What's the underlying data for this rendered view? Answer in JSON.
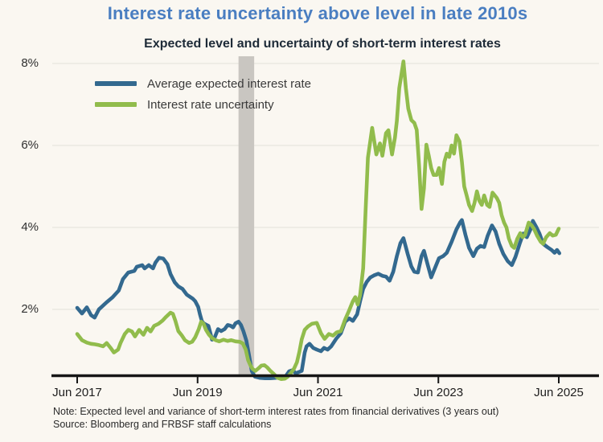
{
  "chart_data": {
    "type": "line",
    "title": "Interest rate uncertainty above level in late 2010s",
    "subtitle": "Expected level and uncertainty of short-term interest rates",
    "note": "Note: Expected level and variance of short-term interest rates from financial derivatives (3 years out)",
    "source": "Source: Bloomberg and FRBSF staff calculations",
    "x_axis": {
      "epoch": "years since Jun 2017",
      "tick_years": [
        0,
        2,
        4,
        6,
        8
      ],
      "tick_labels": [
        "Jun 2017",
        "Jun 2019",
        "Jun 2021",
        "Jun 2023",
        "Jun 2025"
      ],
      "range": [
        0,
        8.05
      ]
    },
    "y_axis": {
      "unit": "%",
      "tick_values": [
        2,
        4,
        6,
        8
      ],
      "tick_labels": [
        "2%",
        "4%",
        "6%",
        "8%"
      ],
      "range": [
        0.3,
        8.2
      ],
      "grid": true
    },
    "shaded_region": {
      "name": "recession-shading",
      "start_year": 2.68,
      "end_year": 2.94,
      "color": "#C9C6C1"
    },
    "colors": {
      "accent_title": "#4A7EC1",
      "axis": "#161616",
      "grid": "#E8E5DE"
    },
    "series": [
      {
        "name": "Average expected interest rate",
        "color": "#33698F",
        "points": [
          [
            0.0,
            2.04
          ],
          [
            0.08,
            1.9
          ],
          [
            0.16,
            2.05
          ],
          [
            0.23,
            1.86
          ],
          [
            0.29,
            1.8
          ],
          [
            0.36,
            2.0
          ],
          [
            0.48,
            2.16
          ],
          [
            0.59,
            2.3
          ],
          [
            0.69,
            2.46
          ],
          [
            0.76,
            2.74
          ],
          [
            0.85,
            2.9
          ],
          [
            0.95,
            2.94
          ],
          [
            0.99,
            3.04
          ],
          [
            1.08,
            3.08
          ],
          [
            1.12,
            3.0
          ],
          [
            1.19,
            3.08
          ],
          [
            1.26,
            3.0
          ],
          [
            1.3,
            3.14
          ],
          [
            1.36,
            3.26
          ],
          [
            1.43,
            3.24
          ],
          [
            1.5,
            3.1
          ],
          [
            1.55,
            2.86
          ],
          [
            1.62,
            2.66
          ],
          [
            1.68,
            2.56
          ],
          [
            1.75,
            2.5
          ],
          [
            1.82,
            2.36
          ],
          [
            1.88,
            2.3
          ],
          [
            1.92,
            2.26
          ],
          [
            1.96,
            2.2
          ],
          [
            2.01,
            2.06
          ],
          [
            2.04,
            1.88
          ],
          [
            2.07,
            1.72
          ],
          [
            2.1,
            1.66
          ],
          [
            2.14,
            1.63
          ],
          [
            2.18,
            1.6
          ],
          [
            2.22,
            1.38
          ],
          [
            2.24,
            1.26
          ],
          [
            2.28,
            1.3
          ],
          [
            2.34,
            1.52
          ],
          [
            2.39,
            1.47
          ],
          [
            2.45,
            1.52
          ],
          [
            2.5,
            1.62
          ],
          [
            2.55,
            1.6
          ],
          [
            2.59,
            1.56
          ],
          [
            2.63,
            1.66
          ],
          [
            2.68,
            1.7
          ],
          [
            2.72,
            1.62
          ],
          [
            2.76,
            1.47
          ],
          [
            2.81,
            1.24
          ],
          [
            2.85,
            0.92
          ],
          [
            2.9,
            0.5
          ],
          [
            2.95,
            0.36
          ],
          [
            3.03,
            0.33
          ],
          [
            3.12,
            0.32
          ],
          [
            3.21,
            0.32
          ],
          [
            3.3,
            0.33
          ],
          [
            3.38,
            0.35
          ],
          [
            3.46,
            0.36
          ],
          [
            3.52,
            0.49
          ],
          [
            3.58,
            0.52
          ],
          [
            3.63,
            0.44
          ],
          [
            3.68,
            0.47
          ],
          [
            3.73,
            0.5
          ],
          [
            3.78,
            0.95
          ],
          [
            3.81,
            1.1
          ],
          [
            3.86,
            1.16
          ],
          [
            3.92,
            1.06
          ],
          [
            3.98,
            1.02
          ],
          [
            4.05,
            0.98
          ],
          [
            4.1,
            1.06
          ],
          [
            4.16,
            1.02
          ],
          [
            4.22,
            1.1
          ],
          [
            4.3,
            1.28
          ],
          [
            4.38,
            1.42
          ],
          [
            4.45,
            1.7
          ],
          [
            4.52,
            1.78
          ],
          [
            4.58,
            1.72
          ],
          [
            4.65,
            1.88
          ],
          [
            4.7,
            2.2
          ],
          [
            4.75,
            2.5
          ],
          [
            4.81,
            2.67
          ],
          [
            4.87,
            2.78
          ],
          [
            4.93,
            2.83
          ],
          [
            5.0,
            2.87
          ],
          [
            5.07,
            2.82
          ],
          [
            5.13,
            2.8
          ],
          [
            5.19,
            2.7
          ],
          [
            5.25,
            2.92
          ],
          [
            5.31,
            3.3
          ],
          [
            5.37,
            3.62
          ],
          [
            5.42,
            3.74
          ],
          [
            5.49,
            3.35
          ],
          [
            5.55,
            3.05
          ],
          [
            5.6,
            2.92
          ],
          [
            5.66,
            2.9
          ],
          [
            5.72,
            3.3
          ],
          [
            5.76,
            3.43
          ],
          [
            5.82,
            3.1
          ],
          [
            5.88,
            2.78
          ],
          [
            5.94,
            3.0
          ],
          [
            6.01,
            3.25
          ],
          [
            6.08,
            3.3
          ],
          [
            6.14,
            3.38
          ],
          [
            6.22,
            3.65
          ],
          [
            6.3,
            3.95
          ],
          [
            6.36,
            4.12
          ],
          [
            6.39,
            4.18
          ],
          [
            6.45,
            3.82
          ],
          [
            6.51,
            3.5
          ],
          [
            6.58,
            3.3
          ],
          [
            6.64,
            3.48
          ],
          [
            6.7,
            3.55
          ],
          [
            6.76,
            3.52
          ],
          [
            6.82,
            3.8
          ],
          [
            6.89,
            4.05
          ],
          [
            6.95,
            3.9
          ],
          [
            7.01,
            3.6
          ],
          [
            7.08,
            3.35
          ],
          [
            7.15,
            3.18
          ],
          [
            7.22,
            3.08
          ],
          [
            7.28,
            3.28
          ],
          [
            7.35,
            3.6
          ],
          [
            7.41,
            3.85
          ],
          [
            7.47,
            3.76
          ],
          [
            7.53,
            3.95
          ],
          [
            7.57,
            4.16
          ],
          [
            7.63,
            4.0
          ],
          [
            7.68,
            3.85
          ],
          [
            7.74,
            3.6
          ],
          [
            7.81,
            3.52
          ],
          [
            7.88,
            3.45
          ],
          [
            7.93,
            3.38
          ],
          [
            7.97,
            3.45
          ],
          [
            8.01,
            3.37
          ]
        ]
      },
      {
        "name": "Interest rate uncertainty",
        "color": "#91BC4C",
        "points": [
          [
            0.0,
            1.4
          ],
          [
            0.08,
            1.25
          ],
          [
            0.16,
            1.19
          ],
          [
            0.23,
            1.16
          ],
          [
            0.29,
            1.15
          ],
          [
            0.36,
            1.13
          ],
          [
            0.43,
            1.1
          ],
          [
            0.49,
            1.18
          ],
          [
            0.55,
            1.07
          ],
          [
            0.61,
            0.95
          ],
          [
            0.68,
            1.02
          ],
          [
            0.72,
            1.18
          ],
          [
            0.79,
            1.4
          ],
          [
            0.85,
            1.5
          ],
          [
            0.91,
            1.46
          ],
          [
            0.96,
            1.34
          ],
          [
            1.03,
            1.5
          ],
          [
            1.1,
            1.38
          ],
          [
            1.16,
            1.55
          ],
          [
            1.22,
            1.46
          ],
          [
            1.28,
            1.6
          ],
          [
            1.35,
            1.65
          ],
          [
            1.42,
            1.73
          ],
          [
            1.47,
            1.81
          ],
          [
            1.55,
            1.92
          ],
          [
            1.59,
            1.89
          ],
          [
            1.63,
            1.73
          ],
          [
            1.68,
            1.47
          ],
          [
            1.74,
            1.36
          ],
          [
            1.79,
            1.25
          ],
          [
            1.86,
            1.18
          ],
          [
            1.91,
            1.21
          ],
          [
            1.96,
            1.32
          ],
          [
            2.02,
            1.52
          ],
          [
            2.06,
            1.7
          ],
          [
            2.1,
            1.65
          ],
          [
            2.14,
            1.5
          ],
          [
            2.19,
            1.38
          ],
          [
            2.24,
            1.3
          ],
          [
            2.3,
            1.25
          ],
          [
            2.36,
            1.22
          ],
          [
            2.43,
            1.26
          ],
          [
            2.5,
            1.23
          ],
          [
            2.56,
            1.25
          ],
          [
            2.63,
            1.22
          ],
          [
            2.7,
            1.21
          ],
          [
            2.75,
            1.17
          ],
          [
            2.8,
            1.02
          ],
          [
            2.84,
            0.76
          ],
          [
            2.88,
            0.63
          ],
          [
            2.91,
            0.55
          ],
          [
            2.96,
            0.5
          ],
          [
            3.01,
            0.56
          ],
          [
            3.06,
            0.63
          ],
          [
            3.11,
            0.64
          ],
          [
            3.16,
            0.58
          ],
          [
            3.21,
            0.5
          ],
          [
            3.27,
            0.42
          ],
          [
            3.33,
            0.33
          ],
          [
            3.39,
            0.3
          ],
          [
            3.45,
            0.31
          ],
          [
            3.5,
            0.36
          ],
          [
            3.55,
            0.45
          ],
          [
            3.6,
            0.55
          ],
          [
            3.65,
            0.71
          ],
          [
            3.69,
            0.96
          ],
          [
            3.73,
            1.27
          ],
          [
            3.78,
            1.5
          ],
          [
            3.83,
            1.58
          ],
          [
            3.9,
            1.65
          ],
          [
            3.98,
            1.67
          ],
          [
            4.05,
            1.42
          ],
          [
            4.11,
            1.28
          ],
          [
            4.18,
            1.4
          ],
          [
            4.25,
            1.36
          ],
          [
            4.31,
            1.44
          ],
          [
            4.38,
            1.47
          ],
          [
            4.45,
            1.75
          ],
          [
            4.51,
            1.95
          ],
          [
            4.58,
            2.2
          ],
          [
            4.62,
            2.3
          ],
          [
            4.66,
            2.12
          ],
          [
            4.7,
            2.35
          ],
          [
            4.75,
            3.0
          ],
          [
            4.79,
            4.4
          ],
          [
            4.83,
            5.7
          ],
          [
            4.9,
            6.43
          ],
          [
            4.97,
            5.78
          ],
          [
            5.03,
            6.05
          ],
          [
            5.07,
            5.75
          ],
          [
            5.13,
            6.3
          ],
          [
            5.17,
            6.37
          ],
          [
            5.23,
            5.78
          ],
          [
            5.28,
            6.2
          ],
          [
            5.31,
            6.6
          ],
          [
            5.35,
            7.4
          ],
          [
            5.42,
            8.05
          ],
          [
            5.46,
            7.4
          ],
          [
            5.5,
            6.9
          ],
          [
            5.55,
            6.62
          ],
          [
            5.6,
            6.55
          ],
          [
            5.64,
            6.38
          ],
          [
            5.68,
            5.5
          ],
          [
            5.72,
            4.45
          ],
          [
            5.76,
            4.95
          ],
          [
            5.8,
            6.02
          ],
          [
            5.84,
            5.75
          ],
          [
            5.88,
            5.45
          ],
          [
            5.92,
            5.28
          ],
          [
            5.97,
            5.28
          ],
          [
            6.01,
            5.45
          ],
          [
            6.06,
            5.06
          ],
          [
            6.1,
            5.6
          ],
          [
            6.14,
            5.8
          ],
          [
            6.18,
            5.72
          ],
          [
            6.22,
            6.0
          ],
          [
            6.26,
            5.8
          ],
          [
            6.3,
            6.25
          ],
          [
            6.35,
            6.1
          ],
          [
            6.39,
            5.6
          ],
          [
            6.43,
            5.0
          ],
          [
            6.47,
            4.78
          ],
          [
            6.51,
            4.55
          ],
          [
            6.56,
            4.4
          ],
          [
            6.6,
            4.6
          ],
          [
            6.64,
            4.88
          ],
          [
            6.68,
            4.65
          ],
          [
            6.72,
            4.55
          ],
          [
            6.76,
            4.78
          ],
          [
            6.81,
            4.55
          ],
          [
            6.85,
            4.5
          ],
          [
            6.9,
            4.85
          ],
          [
            6.97,
            4.72
          ],
          [
            7.01,
            4.6
          ],
          [
            7.05,
            4.3
          ],
          [
            7.09,
            4.12
          ],
          [
            7.13,
            4.0
          ],
          [
            7.17,
            3.73
          ],
          [
            7.22,
            3.55
          ],
          [
            7.26,
            3.5
          ],
          [
            7.31,
            3.72
          ],
          [
            7.36,
            3.86
          ],
          [
            7.4,
            3.76
          ],
          [
            7.44,
            3.82
          ],
          [
            7.5,
            4.12
          ],
          [
            7.55,
            4.05
          ],
          [
            7.59,
            3.96
          ],
          [
            7.64,
            3.8
          ],
          [
            7.7,
            3.65
          ],
          [
            7.74,
            3.6
          ],
          [
            7.79,
            3.76
          ],
          [
            7.85,
            3.86
          ],
          [
            7.9,
            3.8
          ],
          [
            7.95,
            3.82
          ],
          [
            8.0,
            3.97
          ]
        ]
      }
    ]
  }
}
